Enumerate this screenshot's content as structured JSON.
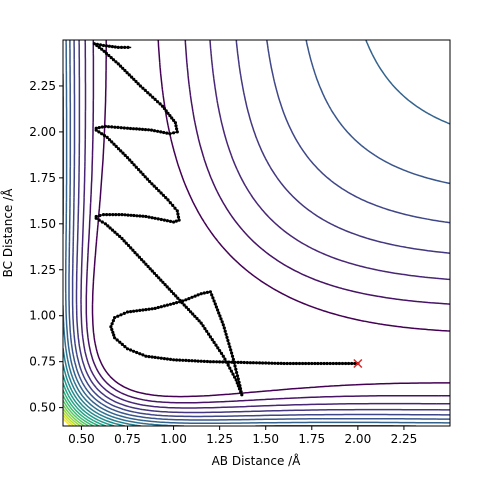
{
  "chart_data": {
    "type": "contour",
    "xlabel": "AB Distance /Å",
    "ylabel": "BC Distance /Å",
    "xlim": [
      0.4,
      2.5
    ],
    "ylim": [
      0.4,
      2.5
    ],
    "xticks": [
      0.5,
      0.75,
      1.0,
      1.25,
      1.5,
      1.75,
      2.0,
      2.25
    ],
    "yticks": [
      0.5,
      0.75,
      1.0,
      1.25,
      1.5,
      1.75,
      2.0,
      2.25
    ],
    "xtick_labels": [
      "0.50",
      "0.75",
      "1.00",
      "1.25",
      "1.50",
      "1.75",
      "2.00",
      "2.25"
    ],
    "ytick_labels": [
      "0.50",
      "0.75",
      "1.00",
      "1.25",
      "1.50",
      "1.75",
      "2.00",
      "2.25"
    ],
    "grid": false,
    "colormap": "viridis",
    "contour_line_count": 20,
    "trajectory": {
      "color": "#000000",
      "marker": "dot",
      "points": [
        [
          2.0,
          0.74
        ],
        [
          1.8,
          0.74
        ],
        [
          1.6,
          0.74
        ],
        [
          1.4,
          0.745
        ],
        [
          1.2,
          0.75
        ],
        [
          1.0,
          0.76
        ],
        [
          0.85,
          0.78
        ],
        [
          0.75,
          0.82
        ],
        [
          0.68,
          0.88
        ],
        [
          0.66,
          0.94
        ],
        [
          0.68,
          0.99
        ],
        [
          0.75,
          1.02
        ],
        [
          0.9,
          1.04
        ],
        [
          1.05,
          1.08
        ],
        [
          1.15,
          1.12
        ],
        [
          1.2,
          1.13
        ],
        [
          1.22,
          1.08
        ],
        [
          1.27,
          0.95
        ],
        [
          1.32,
          0.78
        ],
        [
          1.36,
          0.62
        ],
        [
          1.37,
          0.57
        ],
        [
          1.34,
          0.65
        ],
        [
          1.27,
          0.78
        ],
        [
          1.15,
          0.96
        ],
        [
          1.0,
          1.12
        ],
        [
          0.85,
          1.28
        ],
        [
          0.72,
          1.42
        ],
        [
          0.63,
          1.5
        ],
        [
          0.58,
          1.53
        ],
        [
          0.58,
          1.54
        ],
        [
          0.62,
          1.55
        ],
        [
          0.72,
          1.55
        ],
        [
          0.85,
          1.54
        ],
        [
          0.95,
          1.52
        ],
        [
          1.0,
          1.51
        ],
        [
          1.03,
          1.52
        ],
        [
          1.02,
          1.57
        ],
        [
          0.97,
          1.63
        ],
        [
          0.87,
          1.73
        ],
        [
          0.75,
          1.86
        ],
        [
          0.64,
          1.97
        ],
        [
          0.58,
          2.01
        ],
        [
          0.58,
          2.02
        ],
        [
          0.63,
          2.03
        ],
        [
          0.75,
          2.02
        ],
        [
          0.88,
          2.01
        ],
        [
          0.98,
          1.99
        ],
        [
          1.02,
          2.0
        ],
        [
          1.01,
          2.05
        ],
        [
          0.94,
          2.14
        ],
        [
          0.82,
          2.25
        ],
        [
          0.7,
          2.37
        ],
        [
          0.61,
          2.45
        ],
        [
          0.57,
          2.48
        ],
        [
          0.62,
          2.47
        ],
        [
          0.7,
          2.46
        ],
        [
          0.77,
          2.46
        ]
      ]
    },
    "end_marker": {
      "x": 2.0,
      "y": 0.74,
      "color": "#d62728",
      "symbol": "x"
    }
  }
}
